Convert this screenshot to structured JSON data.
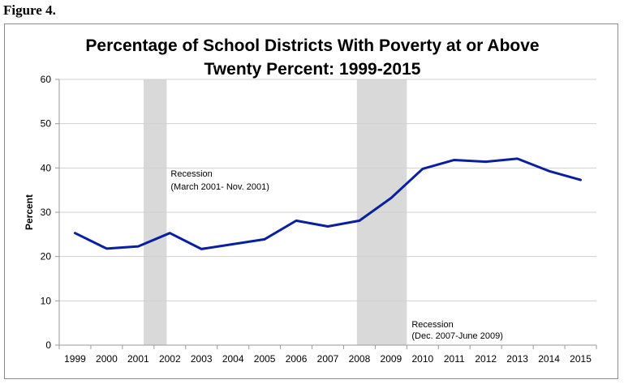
{
  "figure_label": "Figure 4.",
  "chart_data": {
    "type": "line",
    "title_line1": "Percentage of School Districts With Poverty at or Above",
    "title_line2": "Twenty Percent: 1999-2015",
    "ylabel": "Percent",
    "xlabel": "",
    "ylim": [
      0,
      60
    ],
    "y_ticks": [
      0,
      10,
      20,
      30,
      40,
      50,
      60
    ],
    "grid": true,
    "legend": "none",
    "line_color": "#0a1fa0",
    "x": [
      "1999",
      "2000",
      "2001",
      "2002",
      "2003",
      "2004",
      "2005",
      "2006",
      "2007",
      "2008",
      "2009",
      "2010",
      "2011",
      "2012",
      "2013",
      "2014",
      "2015"
    ],
    "values": [
      25.3,
      21.8,
      22.3,
      25.3,
      21.7,
      22.8,
      23.9,
      28.1,
      26.8,
      28.1,
      33.2,
      39.8,
      41.8,
      41.4,
      42.1,
      39.3,
      37.3
    ],
    "recessions": [
      {
        "label_line1": "Recession",
        "label_line2": "(March 2001- Nov. 2001)",
        "start": 2001.17,
        "end": 2001.9
      },
      {
        "label_line1": "Recession",
        "label_line2": "(Dec. 2007-June 2009)",
        "start": 2007.92,
        "end": 2009.5
      }
    ]
  }
}
